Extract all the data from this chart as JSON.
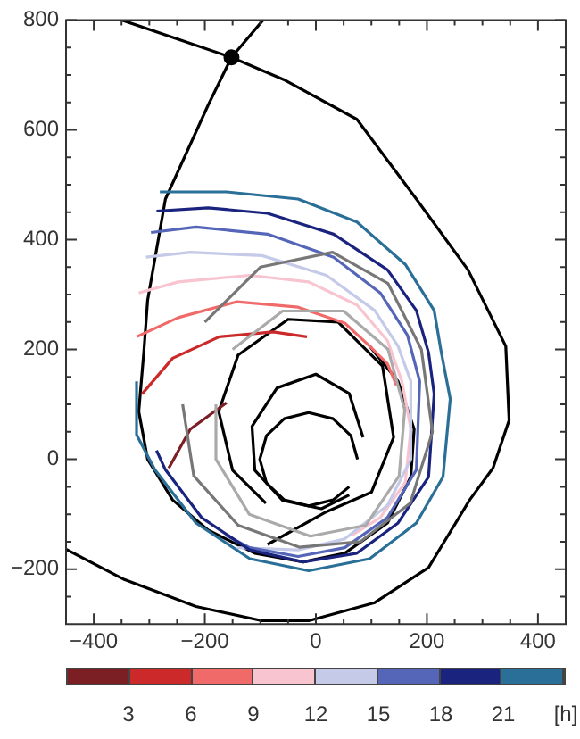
{
  "chart_data": {
    "type": "line",
    "clabel": "[h]",
    "clim": [
      0,
      24
    ],
    "cticks": [
      3,
      6,
      9,
      12,
      15,
      18,
      21
    ],
    "colors": [
      "#7b1f24",
      "#cc2a2a",
      "#f06a6a",
      "#f8c4cf",
      "#c5cae9",
      "#5566b8",
      "#1a237e",
      "#2a6f97"
    ],
    "xlim": [
      -450,
      450
    ],
    "ylim": [
      -300,
      800
    ],
    "xticks": [
      {
        "value": -400,
        "label": "−400"
      },
      {
        "value": -350,
        "label": null
      },
      {
        "value": -300,
        "label": null
      },
      {
        "value": -250,
        "label": null
      },
      {
        "value": -200,
        "label": "−200"
      },
      {
        "value": -150,
        "label": null
      },
      {
        "value": -100,
        "label": null
      },
      {
        "value": -50,
        "label": null
      },
      0,
      {
        "value": 50,
        "label": null
      },
      {
        "value": 100,
        "label": null
      },
      {
        "value": 150,
        "label": null
      },
      200,
      {
        "value": 250,
        "label": null
      },
      {
        "value": 300,
        "label": null
      },
      {
        "value": 350,
        "label": null
      },
      400
    ],
    "yticks": [
      {
        "value": -250,
        "label": null
      },
      {
        "value": -200,
        "label": "−200"
      },
      {
        "value": -150,
        "label": null
      },
      {
        "value": -100,
        "label": null
      },
      {
        "value": -50,
        "label": null
      },
      0,
      {
        "value": 50,
        "label": null
      },
      {
        "value": 100,
        "label": null
      },
      {
        "value": 150,
        "label": null
      },
      200,
      {
        "value": 250,
        "label": null
      },
      {
        "value": 300,
        "label": null
      },
      {
        "value": 350,
        "label": null
      },
      400,
      {
        "value": 450,
        "label": null
      },
      {
        "value": 500,
        "label": null
      },
      {
        "value": 550,
        "label": null
      },
      600,
      {
        "value": 650,
        "label": null
      },
      {
        "value": 700,
        "label": null
      },
      {
        "value": 750,
        "label": null
      },
      800
    ],
    "grid": false,
    "legend": false,
    "line_style": "solid",
    "series": [
      {
        "color": "#777777",
        "x": [
          -200,
          -100,
          30,
          130,
          190,
          210,
          170,
          80,
          -30,
          -140,
          -220,
          -240
        ],
        "values": [
          250,
          350,
          377,
          320,
          200,
          50,
          -80,
          -150,
          -160,
          -120,
          -30,
          100
        ]
      },
      {
        "color": "#aaaaaa",
        "x": [
          -150,
          -60,
          50,
          130,
          160,
          150,
          90,
          -10,
          -120,
          -180,
          -180
        ],
        "values": [
          200,
          270,
          270,
          200,
          90,
          -30,
          -120,
          -140,
          -100,
          0,
          100
        ]
      },
      {
        "color": "#2a6f97",
        "x": [
          -281,
          -161,
          -32,
          74,
          161,
          213,
          226,
          242,
          229,
          181,
          97,
          -13,
          -119,
          -216,
          -290,
          -323,
          -323
        ],
        "values": [
          487,
          487,
          474,
          432,
          355,
          271,
          194,
          110,
          -32,
          -116,
          -181,
          -203,
          -181,
          -116,
          -19,
          45,
          142
        ]
      },
      {
        "color": "#1a237e",
        "x": [
          -287,
          -194,
          -87,
          32,
          129,
          181,
          203,
          213,
          203,
          148,
          74,
          -23,
          -119,
          -206,
          -271,
          -287
        ],
        "values": [
          452,
          458,
          448,
          410,
          345,
          271,
          194,
          119,
          -32,
          -116,
          -171,
          -187,
          -165,
          -106,
          -19,
          16
        ]
      },
      {
        "color": "#5566b8",
        "x": [
          -297,
          -216,
          -87,
          32,
          116,
          165,
          187,
          181,
          129,
          52,
          -32,
          -119,
          -161
        ],
        "values": [
          413,
          423,
          410,
          368,
          303,
          226,
          142,
          -19,
          -106,
          -161,
          -177,
          -161,
          -139
        ]
      },
      {
        "color": "#c5cae9",
        "x": [
          -306,
          -226,
          -97,
          19,
          106,
          148,
          171,
          171,
          129,
          52,
          -32,
          -142
        ],
        "values": [
          368,
          377,
          371,
          335,
          271,
          206,
          142,
          0,
          -84,
          -145,
          -165,
          -161
        ]
      },
      {
        "color": "#f8c4cf",
        "x": [
          -319,
          -248,
          -119,
          -13,
          74,
          129,
          155,
          171,
          161,
          116,
          64
        ],
        "values": [
          303,
          323,
          335,
          323,
          281,
          216,
          142,
          55,
          -42,
          -106,
          -139
        ]
      },
      {
        "color": "#f06a6a",
        "x": [
          -323,
          -248,
          -142,
          -32,
          52,
          97,
          129,
          145
        ],
        "values": [
          223,
          258,
          287,
          277,
          248,
          206,
          174,
          135
        ]
      },
      {
        "color": "#cc2a2a",
        "x": [
          -313,
          -258,
          -174,
          -77,
          -16
        ],
        "values": [
          119,
          184,
          223,
          232,
          223
        ]
      },
      {
        "color": "#7b1f24",
        "x": [
          -265,
          -226,
          -161
        ],
        "values": [
          -16,
          55,
          103
        ]
      },
      {
        "color": "#000000",
        "x": [
          -350,
          -152,
          -55,
          74,
          181,
          274,
          342,
          348,
          319,
          277,
          203,
          106,
          -13,
          -97,
          -216,
          -345,
          -450
        ],
        "values": [
          800,
          732,
          690,
          619,
          474,
          345,
          206,
          71,
          -16,
          -74,
          -197,
          -261,
          -294,
          -294,
          -268,
          -219,
          -164
        ]
      },
      {
        "color": "#000000",
        "x": [
          -95,
          -152,
          -194,
          -271,
          -303,
          -310,
          -319,
          -303,
          -258,
          -194,
          -110,
          -23,
          52,
          129,
          171,
          177,
          148,
          97
        ],
        "values": [
          800,
          732,
          645,
          474,
          290,
          194,
          87,
          0,
          -74,
          -129,
          -171,
          -187,
          -171,
          -116,
          -32,
          55,
          142,
          206
        ]
      },
      {
        "color": "#000000",
        "x": [
          75,
          63,
          31,
          -13,
          -57,
          -89,
          -101,
          -89,
          -57,
          -13,
          31,
          60
        ],
        "values": [
          0,
          43,
          74,
          85,
          74,
          43,
          0,
          -43,
          -74,
          -85,
          -74,
          -50
        ]
      },
      {
        "color": "#000000",
        "x": [
          85,
          60,
          0,
          -70,
          -115,
          -110,
          -60,
          10,
          60
        ],
        "values": [
          40,
          120,
          155,
          130,
          60,
          -20,
          -75,
          -90,
          -65
        ]
      },
      {
        "color": "#000000",
        "x": [
          -87,
          16,
          100,
          140,
          120,
          40,
          -50,
          -140,
          -175,
          -150,
          -90
        ],
        "values": [
          -155,
          -97,
          -60,
          40,
          170,
          250,
          255,
          190,
          87,
          -20,
          -80
        ]
      },
      {
        "type": "scatter",
        "marker": "circle",
        "color": "#000000",
        "x": [
          -152
        ],
        "values": [
          732
        ]
      }
    ]
  }
}
